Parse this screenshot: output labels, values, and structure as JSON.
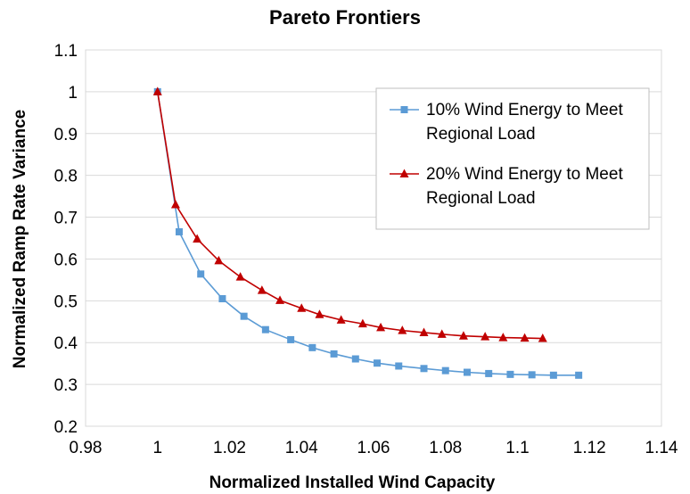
{
  "chart_data": {
    "type": "line",
    "title": "Pareto Frontiers",
    "xlabel": "Normalized Installed Wind Capacity",
    "ylabel": "Normalized Ramp Rate Variance",
    "xlim": [
      0.98,
      1.14
    ],
    "ylim": [
      0.2,
      1.1
    ],
    "x_ticks": [
      "0.98",
      "1",
      "1.02",
      "1.04",
      "1.06",
      "1.08",
      "1.1",
      "1.12",
      "1.14"
    ],
    "y_ticks": [
      "0.2",
      "0.3",
      "0.4",
      "0.5",
      "0.6",
      "0.7",
      "0.8",
      "0.9",
      "1",
      "1.1"
    ],
    "grid": "horizontal",
    "legend_position": "top-right",
    "series": [
      {
        "name_lines": [
          "10% Wind Energy to Meet",
          "Regional Load"
        ],
        "color": "#5b9bd5",
        "marker": "square",
        "x": [
          1.0,
          1.006,
          1.012,
          1.018,
          1.024,
          1.03,
          1.037,
          1.043,
          1.049,
          1.055,
          1.061,
          1.067,
          1.074,
          1.08,
          1.086,
          1.092,
          1.098,
          1.104,
          1.11,
          1.117
        ],
        "y": [
          1.0,
          0.665,
          0.564,
          0.505,
          0.463,
          0.431,
          0.407,
          0.388,
          0.373,
          0.361,
          0.351,
          0.344,
          0.338,
          0.333,
          0.329,
          0.326,
          0.324,
          0.323,
          0.322,
          0.322
        ]
      },
      {
        "name_lines": [
          "20% Wind Energy to Meet",
          "Regional Load"
        ],
        "color": "#c00000",
        "marker": "triangle",
        "x": [
          1.0,
          1.005,
          1.011,
          1.017,
          1.023,
          1.029,
          1.034,
          1.04,
          1.045,
          1.051,
          1.057,
          1.062,
          1.068,
          1.074,
          1.079,
          1.085,
          1.091,
          1.096,
          1.102,
          1.107
        ],
        "y": [
          1.0,
          0.73,
          0.648,
          0.596,
          0.557,
          0.525,
          0.501,
          0.482,
          0.467,
          0.454,
          0.445,
          0.436,
          0.429,
          0.424,
          0.42,
          0.416,
          0.414,
          0.412,
          0.411,
          0.41
        ]
      }
    ]
  }
}
